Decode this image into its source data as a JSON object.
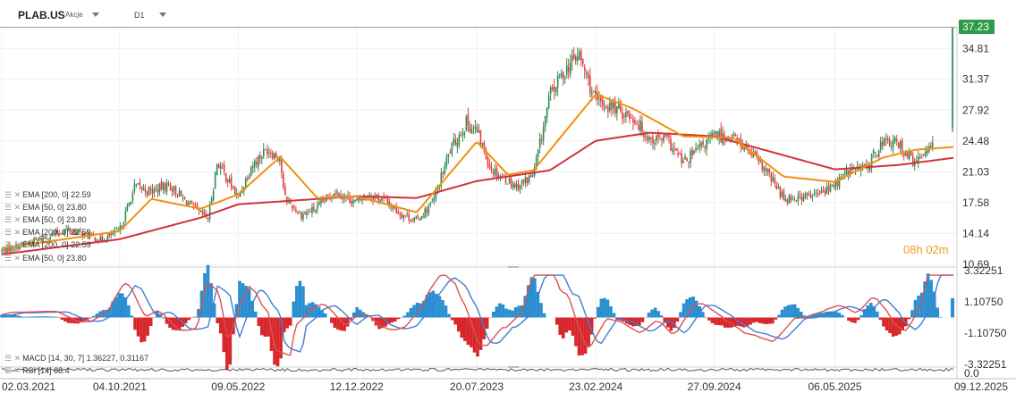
{
  "header": {
    "symbol": "PLAB.US",
    "instrument_type": "Akcje",
    "interval": "D1"
  },
  "price_axis": {
    "ticks": [
      "34.81",
      "31.37",
      "27.92",
      "24.48",
      "21.03",
      "17.58",
      "14.14",
      "10.69"
    ]
  },
  "current_price": "37.23",
  "macd_axis": {
    "ticks": [
      "3.32251",
      "1.10750",
      "-1.10750",
      "-3.32251"
    ]
  },
  "rsi_axis": {
    "ticks": [
      "0.0"
    ]
  },
  "time_axis": {
    "ticks": [
      "02.03.2021",
      "04.10.2021",
      "09.05.2022",
      "12.12.2022",
      "20.07.2023",
      "23.02.2024",
      "27.09.2024",
      "06.05.2025",
      "09.12.2025"
    ]
  },
  "indicators": [
    {
      "label": "EMA [200, 0]",
      "value": "22.59"
    },
    {
      "label": "EMA [50, 0]",
      "value": "23.80"
    },
    {
      "label": "EMA [50, 0]",
      "value": "23.80"
    },
    {
      "label": "EMA [200, 0]",
      "value": "22.59"
    },
    {
      "label": "EMA [200, 0]",
      "value": "22.59"
    },
    {
      "label": "EMA [50, 0]",
      "value": "23.80"
    }
  ],
  "macd_legend": {
    "label": "MACD [14, 30, 7]",
    "values": "1.36227,  0.31167"
  },
  "rsi_legend": {
    "label": "RSI [14]",
    "value": "88.4"
  },
  "countdown": {
    "hours": "08",
    "h_unit": "h",
    "minutes": "02",
    "m_unit": "m"
  },
  "colors": {
    "candle_up": "#2e8b57",
    "candle_down": "#e0403c",
    "ema200": "#d2323c",
    "ema50": "#f0900f",
    "macd_line": "#d9534f",
    "signal_line": "#3f7fd0",
    "hist_pos": "#2a8fd0",
    "hist_neg": "#d8262b",
    "price_badge": "#2e9b4a",
    "rsi_line": "#555555"
  },
  "chart_data": {
    "type": "candlestick",
    "title": "PLAB.US",
    "interval": "D1",
    "x_range": [
      "02.03.2021",
      "09.12.2025"
    ],
    "ylim": [
      10.69,
      37.23
    ],
    "close_path": [
      [
        "02.03.2021",
        12.2
      ],
      [
        "01.05.2021",
        13.3
      ],
      [
        "01.07.2021",
        14.6
      ],
      [
        "01.09.2021",
        13.4
      ],
      [
        "04.10.2021",
        14.5
      ],
      [
        "01.11.2021",
        19.4
      ],
      [
        "01.12.2021",
        18.8
      ],
      [
        "01.01.2022",
        19.6
      ],
      [
        "01.02.2022",
        17.8
      ],
      [
        "01.03.2022",
        16.3
      ],
      [
        "15.03.2022",
        15.9
      ],
      [
        "01.04.2022",
        22.2
      ],
      [
        "09.05.2022",
        18.1
      ],
      [
        "01.06.2022",
        21.6
      ],
      [
        "01.07.2022",
        23.6
      ],
      [
        "25.07.2022",
        22.6
      ],
      [
        "01.08.2022",
        18.2
      ],
      [
        "01.09.2022",
        16.2
      ],
      [
        "01.10.2022",
        17.0
      ],
      [
        "01.11.2022",
        18.9
      ],
      [
        "12.12.2022",
        17.6
      ],
      [
        "01.01.2023",
        18.5
      ],
      [
        "01.02.2023",
        17.9
      ],
      [
        "01.03.2023",
        16.4
      ],
      [
        "01.04.2023",
        15.6
      ],
      [
        "01.05.2023",
        17.6
      ],
      [
        "01.06.2023",
        23.4
      ],
      [
        "01.07.2023",
        26.5
      ],
      [
        "20.07.2023",
        25.6
      ],
      [
        "15.08.2023",
        21.4
      ],
      [
        "01.10.2023",
        19.4
      ],
      [
        "01.11.2023",
        20.7
      ],
      [
        "01.12.2023",
        29.6
      ],
      [
        "01.01.2024",
        32.7
      ],
      [
        "23.01.2024",
        34.1
      ],
      [
        "23.02.2024",
        28.8
      ],
      [
        "01.04.2024",
        28.1
      ],
      [
        "01.05.2024",
        27.1
      ],
      [
        "01.06.2024",
        24.7
      ],
      [
        "01.07.2024",
        24.7
      ],
      [
        "01.08.2024",
        22.0
      ],
      [
        "27.09.2024",
        25.1
      ],
      [
        "01.11.2024",
        24.9
      ],
      [
        "01.12.2024",
        23.2
      ],
      [
        "01.01.2025",
        21.0
      ],
      [
        "01.02.2025",
        18.1
      ],
      [
        "01.03.2025",
        18.2
      ],
      [
        "01.04.2025",
        18.4
      ],
      [
        "06.05.2025",
        19.6
      ],
      [
        "01.06.2025",
        21.2
      ],
      [
        "01.07.2025",
        21.4
      ],
      [
        "01.08.2025",
        24.4
      ],
      [
        "01.09.2025",
        24.1
      ],
      [
        "01.10.2025",
        21.8
      ],
      [
        "01.11.2025",
        24.7
      ],
      [
        "09.12.2025",
        37.23
      ]
    ],
    "ema50": [
      [
        "02.03.2021",
        12.5
      ],
      [
        "04.10.2021",
        14.4
      ],
      [
        "01.12.2021",
        18.0
      ],
      [
        "01.03.2022",
        16.9
      ],
      [
        "09.05.2022",
        18.5
      ],
      [
        "25.07.2022",
        22.7
      ],
      [
        "01.10.2022",
        18.1
      ],
      [
        "12.12.2022",
        18.3
      ],
      [
        "01.04.2023",
        16.5
      ],
      [
        "20.07.2023",
        24.4
      ],
      [
        "15.09.2023",
        20.7
      ],
      [
        "01.11.2023",
        21.2
      ],
      [
        "23.02.2024",
        29.7
      ],
      [
        "01.05.2024",
        28.1
      ],
      [
        "01.08.2024",
        25.0
      ],
      [
        "27.09.2024",
        24.9
      ],
      [
        "01.11.2024",
        24.8
      ],
      [
        "01.02.2025",
        20.5
      ],
      [
        "06.05.2025",
        19.9
      ],
      [
        "01.08.2025",
        22.6
      ],
      [
        "01.10.2025",
        23.5
      ],
      [
        "09.12.2025",
        23.8
      ]
    ],
    "ema200": [
      [
        "02.03.2021",
        11.8
      ],
      [
        "04.10.2021",
        13.5
      ],
      [
        "01.03.2022",
        15.9
      ],
      [
        "09.05.2022",
        17.4
      ],
      [
        "12.12.2022",
        18.3
      ],
      [
        "01.04.2023",
        18.1
      ],
      [
        "20.07.2023",
        20.0
      ],
      [
        "01.12.2023",
        21.2
      ],
      [
        "23.02.2024",
        24.5
      ],
      [
        "01.06.2024",
        25.4
      ],
      [
        "27.09.2024",
        25.0
      ],
      [
        "01.01.2025",
        23.4
      ],
      [
        "06.05.2025",
        21.3
      ],
      [
        "01.09.2025",
        21.8
      ],
      [
        "09.12.2025",
        22.59
      ]
    ],
    "macd": {
      "params": "14, 30, 7",
      "macd": 1.36227,
      "signal": 0.31167,
      "ylim": [
        -3.32251,
        3.32251
      ]
    },
    "rsi": {
      "params": "14",
      "value": 88.4
    },
    "indicator_last": {
      "EMA200": 22.59,
      "EMA50": 23.8
    },
    "grid": true,
    "legend_placement": "bottom-left"
  }
}
